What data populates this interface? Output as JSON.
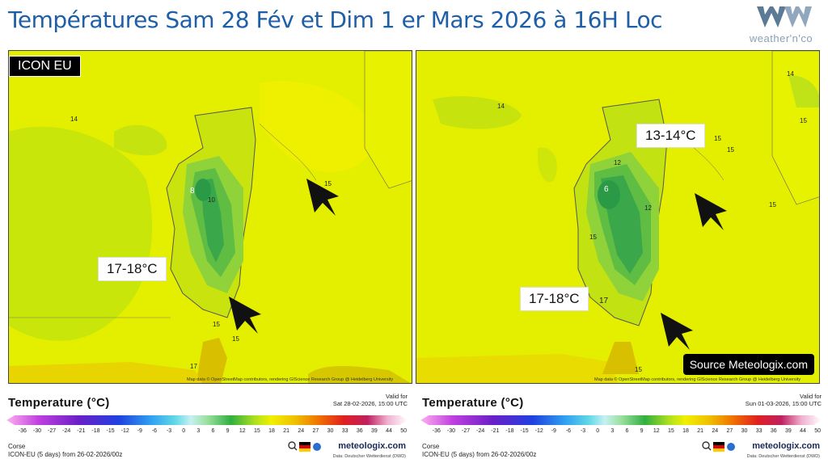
{
  "title": "Températures Sam 28 Fév et Dim 1 er Mars 2026 à 16H Loc",
  "logo": {
    "text": "weather'n'co",
    "icon": "wnco-logo-icon"
  },
  "colors": {
    "title": "#1f5fa8",
    "field_yellow": "#e6f000",
    "land_green": "#3aa84a"
  },
  "panels": [
    {
      "model_badge": "ICON EU",
      "callouts": [
        "17-18°C"
      ],
      "contour_labels": [
        "14",
        "8",
        "10",
        "15",
        "15",
        "15",
        "17"
      ],
      "arrows": [
        "arrow-nw-icon",
        "arrow-nw-icon"
      ],
      "attribution": "Map data © OpenStreetMap contributors, rendering GIScience Research Group @ Heidelberg University"
    },
    {
      "callouts": [
        "13-14°C",
        "17-18°C"
      ],
      "contour_labels": [
        "14",
        "14",
        "15",
        "15",
        "15",
        "15",
        "12",
        "6",
        "12",
        "15",
        "17",
        "15"
      ],
      "arrows": [
        "arrow-nw-icon",
        "arrow-nw-icon"
      ],
      "source": "Source Meteologix.com",
      "attribution": "Map data © OpenStreetMap contributors, rendering GIScience Research Group @ Heidelberg University"
    }
  ],
  "legends": [
    {
      "title": "Temperature (°C)",
      "valid_label": "Valid for",
      "valid_time": "Sat 28-02-2026, 15:00 UTC",
      "region": "Corse",
      "run": "ICON-EU (5 days) from 26-02-2026/00z",
      "brand": "meteologix.com",
      "data_credit": "Data: Deutscher Wetterdienst (DWD)"
    },
    {
      "title": "Temperature (°C)",
      "valid_label": "Valid for",
      "valid_time": "Sun 01-03-2026, 15:00 UTC",
      "region": "Corse",
      "run": "ICON-EU (5 days) from 26-02-2026/00z",
      "brand": "meteologix.com",
      "data_credit": "Data: Deutscher Wetterdienst (DWD)"
    }
  ],
  "scale_ticks": [
    "-36",
    "-30",
    "-27",
    "-24",
    "-21",
    "-18",
    "-15",
    "-12",
    "-9",
    "-6",
    "-3",
    "0",
    "3",
    "6",
    "9",
    "12",
    "15",
    "18",
    "21",
    "24",
    "27",
    "30",
    "33",
    "36",
    "39",
    "44",
    "50"
  ]
}
